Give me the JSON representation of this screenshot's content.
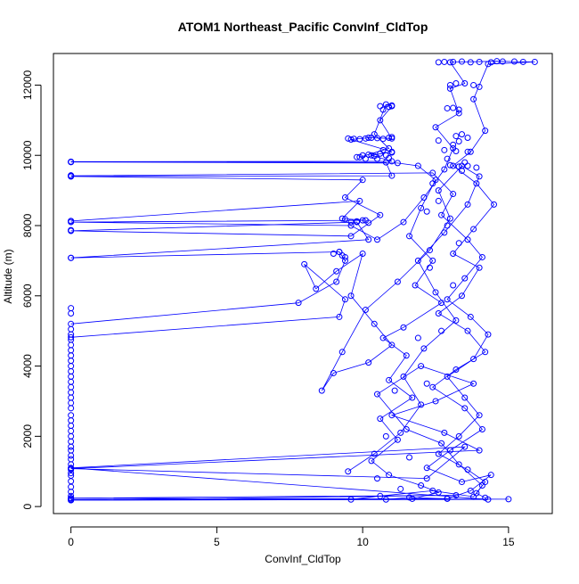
{
  "chart_data": {
    "type": "scatter",
    "title": "ATOM1 Northeast_Pacific ConvInf_CldTop",
    "xlabel": "ConvInf_CldTop",
    "ylabel": "Altitude (m)",
    "xlim": [
      -0.6,
      16.5
    ],
    "ylim": [
      -200,
      12900
    ],
    "x_ticks": [
      0,
      5,
      10,
      15
    ],
    "y_ticks": [
      0,
      2000,
      4000,
      6000,
      8000,
      10000,
      12000
    ],
    "grid": false,
    "legend": "none",
    "marker": "open-circle",
    "connected": true,
    "series_color": "#0000ff",
    "series": [
      {
        "points": [
          [
            0,
            200
          ],
          [
            15.0,
            210
          ],
          [
            0,
            240
          ],
          [
            13.2,
            320
          ],
          [
            0,
            180
          ],
          [
            14.3,
            200
          ],
          [
            0,
            1100
          ],
          [
            13.5,
            1700
          ],
          [
            12.2,
            800
          ],
          [
            0,
            1080
          ],
          [
            14.0,
            1600
          ],
          [
            12.8,
            2100
          ],
          [
            11.0,
            2600
          ],
          [
            12.5,
            3000
          ],
          [
            13.8,
            3500
          ],
          [
            12.0,
            4000
          ],
          [
            10.5,
            3200
          ],
          [
            11.5,
            2200
          ],
          [
            12.7,
            1800
          ],
          [
            13.3,
            1200
          ],
          [
            14.1,
            600
          ],
          [
            13.8,
            280
          ],
          [
            12.4,
            450
          ],
          [
            10.6,
            300
          ],
          [
            9.6,
            200
          ]
        ]
      },
      {
        "points": [
          [
            0,
            4820
          ],
          [
            9.2,
            5400
          ],
          [
            9.4,
            5900
          ],
          [
            8.0,
            6900
          ],
          [
            8.4,
            6200
          ],
          [
            9.1,
            6700
          ],
          [
            10.0,
            7200
          ],
          [
            9.6,
            6000
          ],
          [
            10.4,
            5200
          ],
          [
            11.0,
            4600
          ],
          [
            10.2,
            4100
          ],
          [
            9.0,
            3800
          ],
          [
            8.6,
            3300
          ],
          [
            9.3,
            4400
          ],
          [
            10.1,
            5600
          ],
          [
            11.2,
            6400
          ],
          [
            12.3,
            7300
          ],
          [
            13.0,
            8200
          ],
          [
            12.6,
            9000
          ],
          [
            13.4,
            9700
          ],
          [
            14.0,
            9400
          ],
          [
            13.6,
            8600
          ],
          [
            12.8,
            7800
          ],
          [
            11.9,
            7000
          ],
          [
            12.5,
            6100
          ],
          [
            13.2,
            5300
          ],
          [
            12.1,
            4500
          ],
          [
            11.4,
            3700
          ],
          [
            12.0,
            2900
          ],
          [
            11.3,
            2100
          ],
          [
            10.4,
            1500
          ],
          [
            9.5,
            1000
          ]
        ]
      },
      {
        "points": [
          [
            0,
            5200
          ],
          [
            7.8,
            5800
          ],
          [
            9.1,
            6400
          ],
          [
            9.4,
            7000
          ],
          [
            9.2,
            7250
          ],
          [
            0,
            7080
          ],
          [
            10.2,
            7600
          ],
          [
            9.8,
            8100
          ],
          [
            0,
            7850
          ],
          [
            9.6,
            7700
          ],
          [
            10.6,
            8300
          ],
          [
            9.4,
            8800
          ],
          [
            10.0,
            9300
          ],
          [
            0,
            9400
          ],
          [
            11.0,
            9420
          ],
          [
            10.8,
            9800
          ],
          [
            0,
            9820
          ],
          [
            11.0,
            9830
          ],
          [
            10.3,
            10000
          ],
          [
            11.0,
            10100
          ],
          [
            9.6,
            10450
          ],
          [
            10.2,
            10500
          ],
          [
            11.0,
            10480
          ],
          [
            10.6,
            11000
          ],
          [
            11.0,
            11400
          ],
          [
            10.8,
            11450
          ],
          [
            10.4,
            10600
          ],
          [
            10.9,
            10200
          ],
          [
            9.9,
            9950
          ]
        ]
      },
      {
        "points": [
          [
            0,
            8130
          ],
          [
            9.9,
            8700
          ],
          [
            9.3,
            8200
          ],
          [
            10.1,
            8150
          ],
          [
            0,
            8100
          ],
          [
            9.6,
            8000
          ],
          [
            10.5,
            7600
          ],
          [
            11.4,
            8100
          ],
          [
            12.1,
            8800
          ],
          [
            12.8,
            9600
          ],
          [
            13.1,
            10200
          ],
          [
            12.5,
            10800
          ],
          [
            13.3,
            11200
          ],
          [
            13.0,
            11900
          ],
          [
            13.5,
            12050
          ],
          [
            13.0,
            12650
          ],
          [
            14.6,
            12680
          ],
          [
            15.2,
            12670
          ],
          [
            15.9,
            12660
          ],
          [
            14.3,
            12600
          ],
          [
            13.8,
            11600
          ],
          [
            14.2,
            10700
          ],
          [
            13.7,
            10100
          ],
          [
            13.1,
            9700
          ],
          [
            13.9,
            9200
          ],
          [
            14.5,
            8600
          ],
          [
            13.8,
            7900
          ],
          [
            13.1,
            7200
          ],
          [
            14.0,
            6800
          ],
          [
            13.4,
            6000
          ],
          [
            12.6,
            5500
          ],
          [
            13.6,
            5000
          ],
          [
            14.2,
            4400
          ],
          [
            13.2,
            3900
          ],
          [
            12.4,
            3400
          ],
          [
            13.5,
            2800
          ],
          [
            14.1,
            2200
          ],
          [
            13.0,
            1600
          ],
          [
            12.2,
            1100
          ],
          [
            13.4,
            700
          ],
          [
            14.4,
            900
          ],
          [
            13.7,
            450
          ],
          [
            12.9,
            220
          ],
          [
            11.6,
            260
          ],
          [
            10.8,
            200
          ]
        ]
      },
      {
        "points": [
          [
            0,
            9810
          ],
          [
            11.2,
            9780
          ],
          [
            11.9,
            9700
          ],
          [
            12.5,
            9300
          ],
          [
            12.0,
            8500
          ],
          [
            11.6,
            7700
          ],
          [
            12.4,
            7000
          ],
          [
            11.8,
            6300
          ],
          [
            12.7,
            5800
          ],
          [
            11.4,
            5100
          ],
          [
            10.7,
            4800
          ],
          [
            11.5,
            4300
          ],
          [
            10.9,
            3600
          ],
          [
            11.7,
            3100
          ],
          [
            10.6,
            2500
          ],
          [
            11.2,
            1900
          ],
          [
            10.3,
            1300
          ],
          [
            10.9,
            900
          ],
          [
            12.0,
            600
          ],
          [
            12.6,
            400
          ],
          [
            11.7,
            220
          ],
          [
            12.9,
            230
          ]
        ]
      },
      {
        "points": [
          [
            0,
            9420
          ],
          [
            12.4,
            9500
          ],
          [
            13.1,
            8900
          ],
          [
            12.7,
            8300
          ],
          [
            13.6,
            7600
          ],
          [
            14.1,
            7100
          ],
          [
            13.5,
            6500
          ],
          [
            12.9,
            5900
          ],
          [
            13.7,
            5400
          ],
          [
            14.3,
            4900
          ],
          [
            13.8,
            4200
          ],
          [
            12.9,
            3700
          ],
          [
            13.5,
            3100
          ],
          [
            14.0,
            2600
          ],
          [
            13.3,
            2000
          ],
          [
            12.6,
            1500
          ],
          [
            13.6,
            1050
          ],
          [
            14.2,
            700
          ],
          [
            13.9,
            380
          ],
          [
            14.2,
            250
          ]
        ]
      }
    ],
    "x_zero_points_y": [
      180,
      230,
      300,
      420,
      560,
      720,
      880,
      950,
      1050,
      1200,
      1350,
      1450,
      1600,
      1700,
      1850,
      2000,
      2150,
      2300,
      2450,
      2600,
      2800,
      2950,
      3100,
      3250,
      3400,
      3550,
      3700,
      3850,
      4000,
      4150,
      4300,
      4450,
      4600,
      4750,
      4900,
      5050,
      5500,
      5650,
      7080,
      7850,
      7870,
      8130,
      9400,
      9430,
      9810
    ],
    "cluster_points": [
      [
        9.5,
        10480
      ],
      [
        9.7,
        10470
      ],
      [
        9.9,
        10460
      ],
      [
        10.1,
        10480
      ],
      [
        10.3,
        10500
      ],
      [
        10.5,
        10490
      ],
      [
        10.7,
        10470
      ],
      [
        10.9,
        10500
      ],
      [
        11.0,
        10520
      ],
      [
        9.8,
        9950
      ],
      [
        10.0,
        10000
      ],
      [
        10.2,
        10020
      ],
      [
        10.4,
        9980
      ],
      [
        10.6,
        10050
      ],
      [
        10.8,
        10000
      ],
      [
        11.0,
        10080
      ],
      [
        10.1,
        9900
      ],
      [
        10.5,
        9900
      ],
      [
        10.9,
        9920
      ],
      [
        10.7,
        10150
      ],
      [
        9.3,
        7150
      ],
      [
        9.2,
        7250
      ],
      [
        9.4,
        7100
      ],
      [
        9.0,
        7200
      ],
      [
        9.6,
        8100
      ],
      [
        9.8,
        8120
      ],
      [
        10.0,
        8150
      ],
      [
        10.2,
        8080
      ],
      [
        9.4,
        8180
      ],
      [
        10.6,
        11400
      ],
      [
        10.9,
        11380
      ],
      [
        11.0,
        11420
      ],
      [
        10.7,
        11300
      ],
      [
        12.6,
        12650
      ],
      [
        12.8,
        12660
      ],
      [
        13.1,
        12660
      ],
      [
        13.4,
        12670
      ],
      [
        13.7,
        12650
      ],
      [
        14.0,
        12660
      ],
      [
        14.4,
        12650
      ],
      [
        14.8,
        12670
      ],
      [
        15.5,
        12660
      ],
      [
        13.0,
        12000
      ],
      [
        13.2,
        12050
      ],
      [
        13.8,
        12000
      ],
      [
        14.0,
        11950
      ],
      [
        13.1,
        11350
      ],
      [
        13.3,
        11300
      ],
      [
        12.9,
        11340
      ],
      [
        13.4,
        10600
      ],
      [
        13.2,
        10550
      ],
      [
        13.6,
        10500
      ],
      [
        13.3,
        10400
      ],
      [
        12.8,
        10150
      ],
      [
        13.2,
        10120
      ],
      [
        13.6,
        10100
      ],
      [
        13.0,
        9720
      ],
      [
        13.3,
        9680
      ],
      [
        13.6,
        9700
      ],
      [
        13.9,
        9650
      ],
      [
        13.4,
        9560
      ],
      [
        13.5,
        9800
      ],
      [
        12.9,
        9900
      ],
      [
        13.1,
        10300
      ],
      [
        12.6,
        10420
      ],
      [
        12.4,
        9200
      ],
      [
        12.6,
        8700
      ],
      [
        12.2,
        8400
      ],
      [
        12.9,
        8000
      ],
      [
        13.3,
        7500
      ],
      [
        12.3,
        6800
      ],
      [
        13.1,
        6300
      ],
      [
        12.7,
        5000
      ],
      [
        11.9,
        4800
      ],
      [
        12.2,
        3500
      ],
      [
        11.1,
        3300
      ],
      [
        10.8,
        2000
      ],
      [
        11.6,
        1400
      ],
      [
        10.5,
        800
      ],
      [
        11.3,
        500
      ]
    ]
  }
}
